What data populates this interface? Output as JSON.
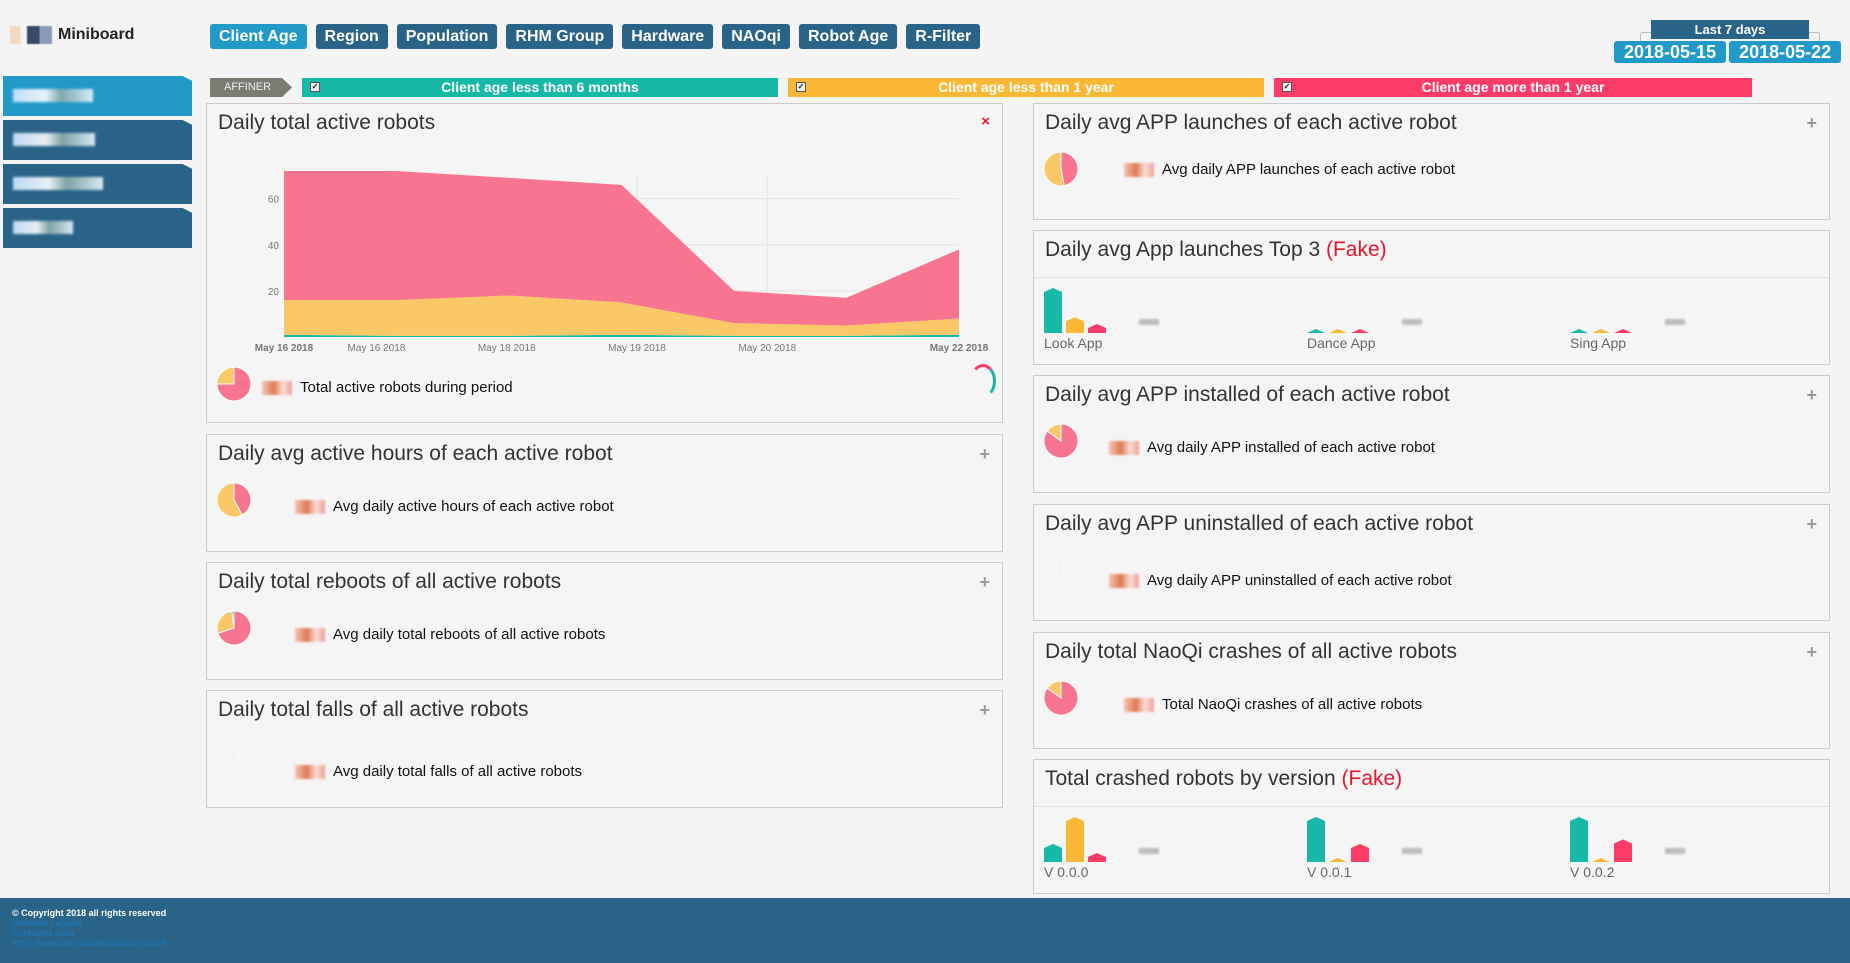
{
  "app": {
    "title": "Miniboard"
  },
  "nav": {
    "tabs": [
      {
        "label": "Client Age",
        "active": true
      },
      {
        "label": "Region"
      },
      {
        "label": "Population"
      },
      {
        "label": "RHM Group"
      },
      {
        "label": "Hardware"
      },
      {
        "label": "NAOqi"
      },
      {
        "label": "Robot Age"
      },
      {
        "label": "R-Filter"
      }
    ]
  },
  "date_range": {
    "preset": "Last 7 days",
    "start": "2018-05-15",
    "end": "2018-05-22"
  },
  "filters": {
    "affiner_label": "AFFINER",
    "items": [
      {
        "label": "Client age less than 6 months",
        "checked": true,
        "color": "#17b8a6"
      },
      {
        "label": "Client age less than 1 year",
        "checked": true,
        "color": "#fbb836"
      },
      {
        "label": "Client age more than 1 year",
        "checked": true,
        "color": "#fb3c68"
      }
    ]
  },
  "colors": {
    "teal": "#17b8a6",
    "yellow": "#fbb836",
    "red": "#fb3c68",
    "area_red": "#f87590",
    "area_yellow": "#fbc867",
    "nav": "#2a6388",
    "nav_active": "#219ac8"
  },
  "left_panels": [
    {
      "title": "Daily total active robots",
      "action": "close-icon",
      "action_glyph": "×",
      "summary": "Total active robots during period",
      "pie": [
        0.75,
        0.25
      ]
    },
    {
      "title": "Daily avg active hours of each active robot",
      "action": "plus-icon",
      "action_glyph": "+",
      "summary": "Avg daily active hours of each active robot",
      "pie": [
        0.42,
        0.58
      ]
    },
    {
      "title": "Daily total reboots of all active robots",
      "action": "plus-icon",
      "action_glyph": "+",
      "summary": "Avg daily total reboots of all active robots",
      "pie": [
        0.7,
        0.28,
        0.02
      ]
    },
    {
      "title": "Daily total falls of all active robots",
      "action": "plus-icon",
      "action_glyph": "+",
      "summary": "Avg daily total falls of all active robots",
      "pie": []
    }
  ],
  "right_panels": [
    {
      "title": "Daily avg APP launches of each active robot",
      "action_glyph": "+",
      "summary": "Avg daily APP launches of each active robot",
      "pie": [
        0.47,
        0.53
      ]
    },
    {
      "title": "Daily avg App launches Top 3",
      "tag": "(Fake)",
      "bars": [
        {
          "label": "Look App",
          "values": [
            10,
            3.5,
            2
          ]
        },
        {
          "label": "Dance App",
          "values": [
            0.4,
            0.4,
            0.4
          ]
        },
        {
          "label": "Sing App",
          "values": [
            0.4,
            0.4,
            0.4
          ]
        }
      ]
    },
    {
      "title": "Daily avg APP installed of each active robot",
      "action_glyph": "+",
      "summary": "Avg daily APP installed of each active robot",
      "pie": [
        0.85,
        0.15
      ]
    },
    {
      "title": "Daily avg APP uninstalled of each active robot",
      "action_glyph": "+",
      "summary": "Avg daily APP uninstalled of each active robot",
      "pie": []
    },
    {
      "title": "Daily total NaoQi crashes of all active robots",
      "action_glyph": "+",
      "summary": "Total NaoQi crashes of all active robots",
      "pie": [
        0.85,
        0.15
      ]
    },
    {
      "title": "Total crashed robots by version",
      "tag": "(Fake)",
      "bars": [
        {
          "label": "V 0.0.0",
          "values": [
            4,
            10,
            2
          ]
        },
        {
          "label": "V 0.0.1",
          "values": [
            10,
            0.4,
            4
          ]
        },
        {
          "label": "V 0.0.2",
          "values": [
            10,
            0.4,
            5
          ]
        }
      ]
    }
  ],
  "chart_data": {
    "type": "area",
    "stacked": true,
    "title": "Daily total active robots",
    "x": [
      "2018-05-16",
      "2018-05-17",
      "2018-05-18",
      "2018-05-19",
      "2018-05-20",
      "2018-05-21",
      "2018-05-22"
    ],
    "x_tick_labels": [
      "May 16 2018",
      "May 16 2018",
      "May 18 2018",
      "May 19 2018",
      "May 20 2018",
      "May 22 2018"
    ],
    "y_ticks": [
      20,
      40,
      60
    ],
    "ylim": [
      0,
      75
    ],
    "grid": true,
    "series": [
      {
        "color": "#17b8a6",
        "values": [
          1,
          0.5,
          0.5,
          1,
          0.5,
          0.5,
          1
        ]
      },
      {
        "color": "#fbc867",
        "values": [
          15,
          15.5,
          17.5,
          14,
          5.5,
          4.5,
          7
        ]
      },
      {
        "color": "#f87590",
        "values": [
          56,
          56,
          51,
          51,
          14,
          12,
          30
        ]
      }
    ]
  },
  "footer": {
    "copyright": "© Copyright 2018 all rights reserved",
    "links": [
      "Mentions Légales",
      "Contactez nous",
      "https://www.ald.softbankrobotics.com/fr"
    ]
  }
}
